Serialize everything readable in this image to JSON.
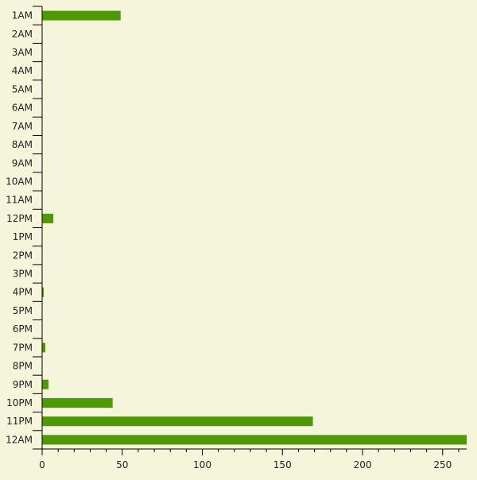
{
  "chart_data": {
    "type": "bar",
    "orientation": "horizontal",
    "categories": [
      "1AM",
      "2AM",
      "3AM",
      "4AM",
      "5AM",
      "6AM",
      "7AM",
      "8AM",
      "9AM",
      "10AM",
      "11AM",
      "12PM",
      "1PM",
      "2PM",
      "3PM",
      "4PM",
      "5PM",
      "6PM",
      "7PM",
      "8PM",
      "9PM",
      "10PM",
      "11PM",
      "12AM"
    ],
    "values": [
      49,
      0,
      0,
      0,
      0,
      0,
      0,
      0,
      0,
      0,
      0,
      7,
      0,
      0,
      0,
      1,
      0,
      0,
      2,
      0,
      4,
      44,
      169,
      265
    ],
    "title": "",
    "xlabel": "",
    "ylabel": "",
    "xlim": [
      0,
      265
    ],
    "xticks": [
      0,
      50,
      100,
      150,
      200,
      250
    ],
    "grid": false,
    "legend": "none",
    "bar_color": "#4e9a06",
    "background": "#f5f5dc",
    "axis_color": "#000000"
  }
}
